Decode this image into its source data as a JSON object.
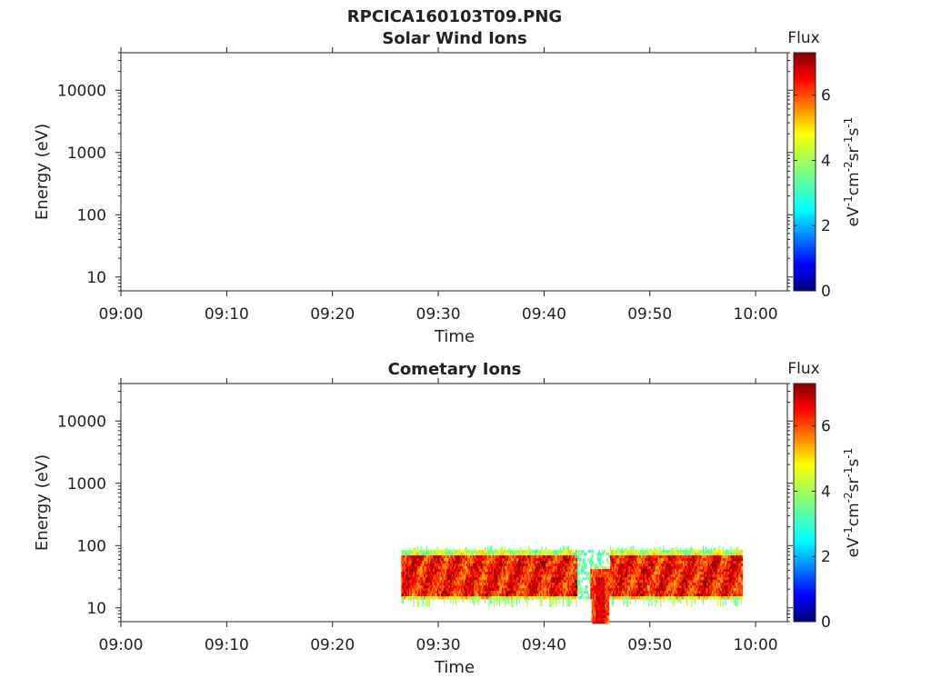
{
  "figure": {
    "title": "RPCICA160103T09.PNG"
  },
  "chart_data": [
    {
      "type": "heatmap",
      "title": "Solar Wind Ions",
      "xlabel": "Time",
      "ylabel": "Energy (eV)",
      "x_ticks": [
        "09:00",
        "09:10",
        "09:20",
        "09:30",
        "09:40",
        "09:50",
        "10:00"
      ],
      "xlim": [
        "09:00",
        "10:03"
      ],
      "y_scale": "log",
      "y_ticks": [
        "10",
        "100",
        "1000",
        "10000"
      ],
      "ylim": [
        6,
        40000
      ],
      "colorbar": {
        "title": "Flux",
        "label": "eV-1cm-2sr-1s-1",
        "ticks": [
          "0",
          "2",
          "4",
          "6"
        ],
        "range": [
          0,
          7.3
        ],
        "colormap": "jet"
      },
      "data_extent": null
    },
    {
      "type": "heatmap",
      "title": "Cometary Ions",
      "xlabel": "Time",
      "ylabel": "Energy (eV)",
      "x_ticks": [
        "09:00",
        "09:10",
        "09:20",
        "09:30",
        "09:40",
        "09:50",
        "10:00"
      ],
      "xlim": [
        "09:00",
        "10:03"
      ],
      "y_scale": "log",
      "y_ticks": [
        "10",
        "100",
        "1000",
        "10000"
      ],
      "ylim": [
        6,
        40000
      ],
      "colorbar": {
        "title": "Flux",
        "label": "eV-1cm-2sr-1s-1",
        "ticks": [
          "0",
          "2",
          "4",
          "6"
        ],
        "range": [
          0,
          7.3
        ],
        "colormap": "jet"
      },
      "data_extent": {
        "time_start": "09:26:30",
        "time_end": "09:58:45",
        "energy_min": 15,
        "energy_max": 85,
        "typical_flux": 6.2,
        "gap_start": "09:43:00",
        "gap_end": "09:46:10",
        "dip_time": "09:45:15",
        "dip_energy_min": 6
      }
    }
  ]
}
